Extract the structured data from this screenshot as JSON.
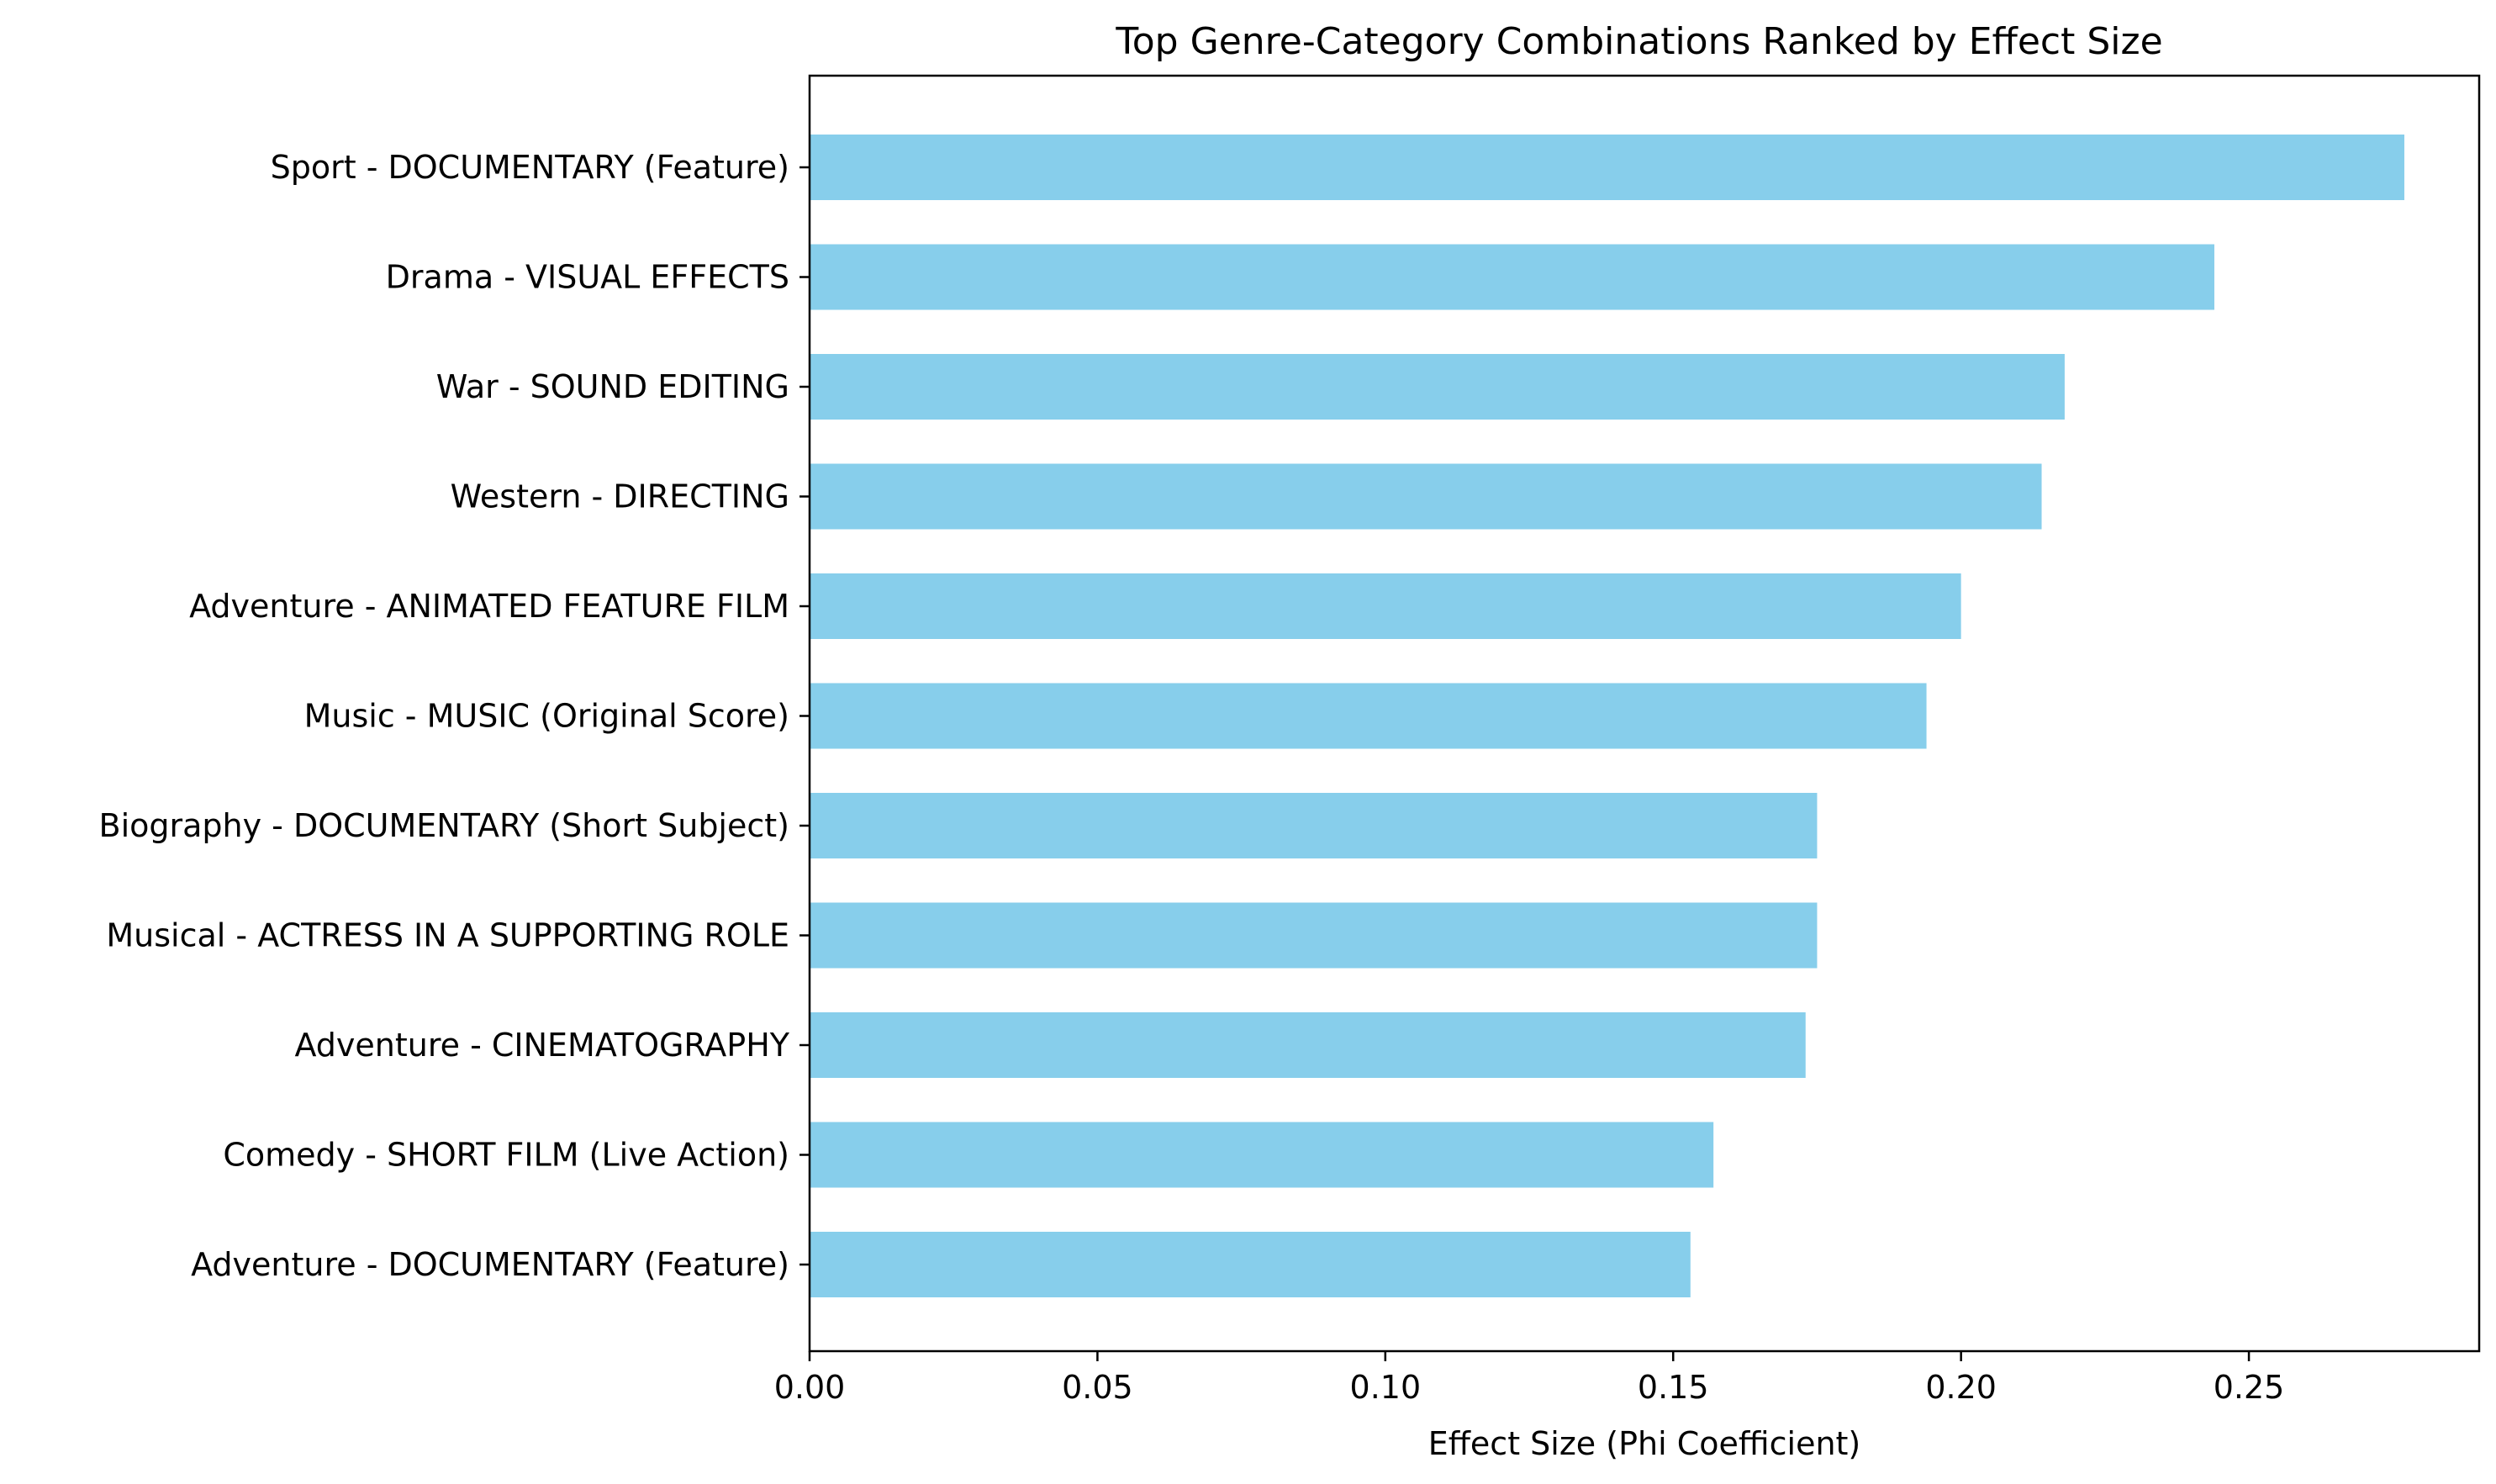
{
  "chart_data": {
    "type": "bar",
    "orientation": "horizontal",
    "title": "Top Genre-Category Combinations Ranked by Effect Size",
    "xlabel": "Effect Size (Phi Coefficient)",
    "ylabel": "",
    "xlim": [
      0,
      0.29
    ],
    "x_ticks": [
      "0.00",
      "0.05",
      "0.10",
      "0.15",
      "0.20",
      "0.25"
    ],
    "x_tick_values": [
      0.0,
      0.05,
      0.1,
      0.15,
      0.2,
      0.25
    ],
    "grid": false,
    "bar_color": "#87ceeb",
    "categories": [
      "Sport - DOCUMENTARY (Feature)",
      "Drama - VISUAL EFFECTS",
      "War - SOUND EDITING",
      "Western - DIRECTING",
      "Adventure - ANIMATED FEATURE FILM",
      "Music - MUSIC (Original Score)",
      "Biography - DOCUMENTARY (Short Subject)",
      "Musical - ACTRESS IN A SUPPORTING ROLE",
      "Adventure - CINEMATOGRAPHY",
      "Comedy - SHORT FILM (Live Action)",
      "Adventure - DOCUMENTARY (Feature)"
    ],
    "values": [
      0.277,
      0.244,
      0.218,
      0.214,
      0.2,
      0.194,
      0.175,
      0.175,
      0.173,
      0.157,
      0.153
    ]
  }
}
